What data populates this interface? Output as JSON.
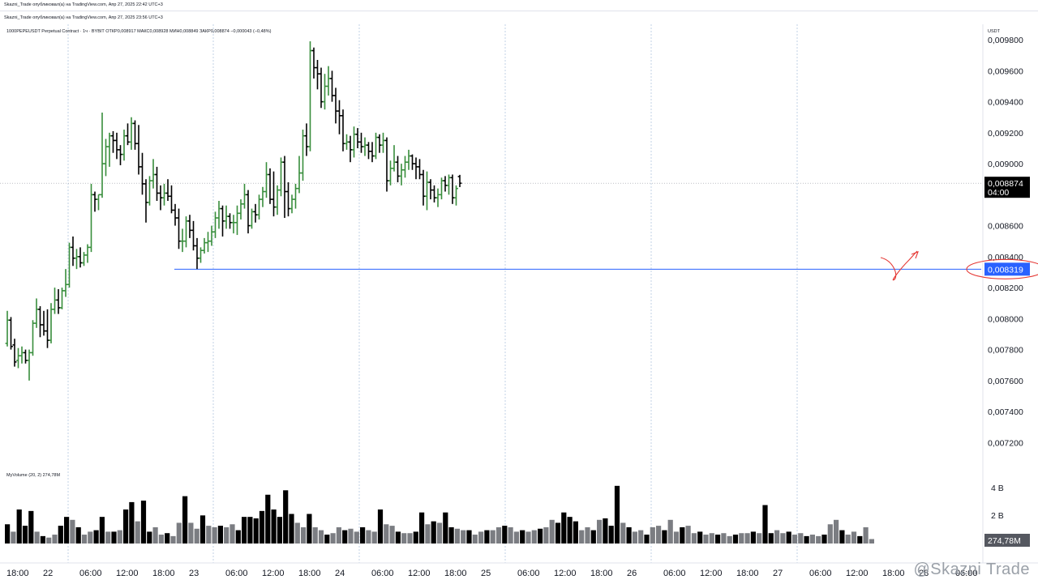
{
  "header": {
    "line1": "Skazni_Trade опубликовал(а) на TradingView.com, Апр 27, 2025 22:42 UTC+3",
    "line2": "Skazni_Trade опубликовал(а) на TradingView.com, Апр 27, 2025 23:56 UTC+3"
  },
  "legend": {
    "symbol_line": "1000PEPEUSDT Perpetual Contract · 1ч · BYBIT",
    "ohlc": "ОТКР0,008917  МАКС0,008928  МИН0,008849  ЗАКР0,008874  −0,000043 (−0,48%)"
  },
  "currency": "USDT",
  "watermark": "@Skazni Trade",
  "colors": {
    "up": "#388e3c",
    "down": "#000000",
    "hline": "#2962ff",
    "annotation": "#e53935",
    "vol_up": "#000000",
    "vol_down": "#7b7d82"
  },
  "chart_data": {
    "type": "ohlc",
    "title": "1000PEPEUSDT Perpetual Contract · 1ч · BYBIT",
    "price_axis": {
      "ticks": [
        "0,009800",
        "0,009600",
        "0,009400",
        "0,009200",
        "0,009000",
        "0,008600",
        "0,008400",
        "0,008200",
        "0,008000",
        "0,007800",
        "0,007600",
        "0,007400",
        "0,007200"
      ],
      "ylim": [
        0.00705,
        0.0099
      ]
    },
    "time_axis": {
      "ticks": [
        "18:00",
        "22",
        "06:00",
        "12:00",
        "18:00",
        "23",
        "06:00",
        "12:00",
        "18:00",
        "24",
        "06:00",
        "12:00",
        "18:00",
        "25",
        "06:00",
        "12:00",
        "18:00",
        "26",
        "06:00",
        "12:00",
        "18:00",
        "27",
        "06:00",
        "12:00",
        "18:00",
        "28",
        "06:00"
      ]
    },
    "last_price": {
      "value": "0,008874",
      "countdown": "04:00",
      "y": 0.008874
    },
    "horizontal_line": {
      "label": "0,008319",
      "y": 0.008319
    },
    "candles": [
      {
        "o": 0.00784,
        "h": 0.00805,
        "l": 0.00782,
        "c": 0.00799
      },
      {
        "o": 0.00799,
        "h": 0.00801,
        "l": 0.0078,
        "c": 0.00782
      },
      {
        "o": 0.00783,
        "h": 0.00787,
        "l": 0.00769,
        "c": 0.00772
      },
      {
        "o": 0.00773,
        "h": 0.00781,
        "l": 0.00768,
        "c": 0.00776
      },
      {
        "o": 0.00776,
        "h": 0.00782,
        "l": 0.00771,
        "c": 0.00778
      },
      {
        "o": 0.00778,
        "h": 0.0078,
        "l": 0.00771,
        "c": 0.00773
      },
      {
        "o": 0.00773,
        "h": 0.0078,
        "l": 0.0076,
        "c": 0.00778
      },
      {
        "o": 0.00778,
        "h": 0.00799,
        "l": 0.00776,
        "c": 0.00797
      },
      {
        "o": 0.00797,
        "h": 0.00813,
        "l": 0.00794,
        "c": 0.00806
      },
      {
        "o": 0.00806,
        "h": 0.00808,
        "l": 0.00788,
        "c": 0.00796
      },
      {
        "o": 0.00796,
        "h": 0.00805,
        "l": 0.00789,
        "c": 0.00792
      },
      {
        "o": 0.00792,
        "h": 0.00806,
        "l": 0.00781,
        "c": 0.00786
      },
      {
        "o": 0.00786,
        "h": 0.0081,
        "l": 0.00784,
        "c": 0.00806
      },
      {
        "o": 0.00806,
        "h": 0.0082,
        "l": 0.00803,
        "c": 0.00812
      },
      {
        "o": 0.00812,
        "h": 0.00819,
        "l": 0.00803,
        "c": 0.00807
      },
      {
        "o": 0.00807,
        "h": 0.0082,
        "l": 0.00806,
        "c": 0.00818
      },
      {
        "o": 0.00818,
        "h": 0.00832,
        "l": 0.00814,
        "c": 0.00822
      },
      {
        "o": 0.00822,
        "h": 0.00849,
        "l": 0.0082,
        "c": 0.00846
      },
      {
        "o": 0.00846,
        "h": 0.00853,
        "l": 0.00834,
        "c": 0.00839
      },
      {
        "o": 0.00839,
        "h": 0.00845,
        "l": 0.00832,
        "c": 0.0084
      },
      {
        "o": 0.0084,
        "h": 0.00846,
        "l": 0.00833,
        "c": 0.00836
      },
      {
        "o": 0.00836,
        "h": 0.00843,
        "l": 0.00834,
        "c": 0.00841
      },
      {
        "o": 0.00841,
        "h": 0.00848,
        "l": 0.00836,
        "c": 0.00846
      },
      {
        "o": 0.00846,
        "h": 0.00887,
        "l": 0.00843,
        "c": 0.0088
      },
      {
        "o": 0.0088,
        "h": 0.00882,
        "l": 0.00869,
        "c": 0.00877
      },
      {
        "o": 0.00877,
        "h": 0.0088,
        "l": 0.0087,
        "c": 0.0088
      },
      {
        "o": 0.0088,
        "h": 0.00933,
        "l": 0.00878,
        "c": 0.009
      },
      {
        "o": 0.009,
        "h": 0.00916,
        "l": 0.00892,
        "c": 0.00911
      },
      {
        "o": 0.00911,
        "h": 0.0092,
        "l": 0.00898,
        "c": 0.00918
      },
      {
        "o": 0.00918,
        "h": 0.00921,
        "l": 0.00907,
        "c": 0.00915
      },
      {
        "o": 0.00915,
        "h": 0.0092,
        "l": 0.00903,
        "c": 0.00909
      },
      {
        "o": 0.00909,
        "h": 0.00912,
        "l": 0.00899,
        "c": 0.00906
      },
      {
        "o": 0.00906,
        "h": 0.00922,
        "l": 0.00902,
        "c": 0.00918
      },
      {
        "o": 0.00918,
        "h": 0.00926,
        "l": 0.00912,
        "c": 0.00914
      },
      {
        "o": 0.00914,
        "h": 0.0093,
        "l": 0.00909,
        "c": 0.00926
      },
      {
        "o": 0.00926,
        "h": 0.00928,
        "l": 0.00909,
        "c": 0.00913
      },
      {
        "o": 0.00913,
        "h": 0.00925,
        "l": 0.00893,
        "c": 0.00898
      },
      {
        "o": 0.00898,
        "h": 0.00907,
        "l": 0.0088,
        "c": 0.00887
      },
      {
        "o": 0.00887,
        "h": 0.0089,
        "l": 0.00862,
        "c": 0.00875
      },
      {
        "o": 0.00875,
        "h": 0.00892,
        "l": 0.00873,
        "c": 0.00889
      },
      {
        "o": 0.00889,
        "h": 0.00903,
        "l": 0.00884,
        "c": 0.00893
      },
      {
        "o": 0.00893,
        "h": 0.00898,
        "l": 0.00876,
        "c": 0.00881
      },
      {
        "o": 0.00881,
        "h": 0.00886,
        "l": 0.0087,
        "c": 0.00878
      },
      {
        "o": 0.00878,
        "h": 0.00887,
        "l": 0.00873,
        "c": 0.00881
      },
      {
        "o": 0.00881,
        "h": 0.0089,
        "l": 0.00876,
        "c": 0.00879
      },
      {
        "o": 0.00879,
        "h": 0.00886,
        "l": 0.00868,
        "c": 0.0087
      },
      {
        "o": 0.0087,
        "h": 0.00874,
        "l": 0.0086,
        "c": 0.00865
      },
      {
        "o": 0.00865,
        "h": 0.00871,
        "l": 0.00845,
        "c": 0.0085
      },
      {
        "o": 0.0085,
        "h": 0.00858,
        "l": 0.00843,
        "c": 0.0085
      },
      {
        "o": 0.0085,
        "h": 0.00866,
        "l": 0.00846,
        "c": 0.00863
      },
      {
        "o": 0.00863,
        "h": 0.00867,
        "l": 0.00852,
        "c": 0.00857
      },
      {
        "o": 0.00857,
        "h": 0.00863,
        "l": 0.00844,
        "c": 0.00847
      },
      {
        "o": 0.00847,
        "h": 0.00852,
        "l": 0.00832,
        "c": 0.00839
      },
      {
        "o": 0.00839,
        "h": 0.00846,
        "l": 0.00836,
        "c": 0.00844
      },
      {
        "o": 0.00844,
        "h": 0.00852,
        "l": 0.00842,
        "c": 0.00849
      },
      {
        "o": 0.00849,
        "h": 0.00856,
        "l": 0.00843,
        "c": 0.0085
      },
      {
        "o": 0.0085,
        "h": 0.0086,
        "l": 0.00847,
        "c": 0.00856
      },
      {
        "o": 0.00856,
        "h": 0.00869,
        "l": 0.00852,
        "c": 0.00865
      },
      {
        "o": 0.00865,
        "h": 0.00876,
        "l": 0.00858,
        "c": 0.00871
      },
      {
        "o": 0.00871,
        "h": 0.00873,
        "l": 0.00853,
        "c": 0.00863
      },
      {
        "o": 0.00863,
        "h": 0.00873,
        "l": 0.00858,
        "c": 0.00866
      },
      {
        "o": 0.00866,
        "h": 0.00868,
        "l": 0.00858,
        "c": 0.00862
      },
      {
        "o": 0.00862,
        "h": 0.00867,
        "l": 0.00855,
        "c": 0.00862
      },
      {
        "o": 0.00862,
        "h": 0.00873,
        "l": 0.00854,
        "c": 0.00868
      },
      {
        "o": 0.00868,
        "h": 0.00877,
        "l": 0.00864,
        "c": 0.00874
      },
      {
        "o": 0.00874,
        "h": 0.00887,
        "l": 0.00871,
        "c": 0.0088
      },
      {
        "o": 0.0088,
        "h": 0.00883,
        "l": 0.00855,
        "c": 0.0086
      },
      {
        "o": 0.0086,
        "h": 0.00871,
        "l": 0.00858,
        "c": 0.00869
      },
      {
        "o": 0.00869,
        "h": 0.00874,
        "l": 0.00862,
        "c": 0.00867
      },
      {
        "o": 0.00867,
        "h": 0.0088,
        "l": 0.00864,
        "c": 0.00877
      },
      {
        "o": 0.00877,
        "h": 0.00885,
        "l": 0.00872,
        "c": 0.00882
      },
      {
        "o": 0.00882,
        "h": 0.00901,
        "l": 0.00878,
        "c": 0.00893
      },
      {
        "o": 0.00893,
        "h": 0.00897,
        "l": 0.00874,
        "c": 0.00877
      },
      {
        "o": 0.00877,
        "h": 0.00895,
        "l": 0.00866,
        "c": 0.00872
      },
      {
        "o": 0.00872,
        "h": 0.00886,
        "l": 0.00867,
        "c": 0.00883
      },
      {
        "o": 0.00883,
        "h": 0.00904,
        "l": 0.00879,
        "c": 0.00901
      },
      {
        "o": 0.00901,
        "h": 0.00905,
        "l": 0.00865,
        "c": 0.00882
      },
      {
        "o": 0.00882,
        "h": 0.00888,
        "l": 0.00866,
        "c": 0.00871
      },
      {
        "o": 0.00871,
        "h": 0.0088,
        "l": 0.00868,
        "c": 0.00877
      },
      {
        "o": 0.00877,
        "h": 0.00887,
        "l": 0.00871,
        "c": 0.00884
      },
      {
        "o": 0.00884,
        "h": 0.00905,
        "l": 0.00881,
        "c": 0.00894
      },
      {
        "o": 0.00894,
        "h": 0.00922,
        "l": 0.00889,
        "c": 0.00918
      },
      {
        "o": 0.00918,
        "h": 0.00926,
        "l": 0.00905,
        "c": 0.00911
      },
      {
        "o": 0.00911,
        "h": 0.00979,
        "l": 0.00908,
        "c": 0.00973
      },
      {
        "o": 0.00973,
        "h": 0.00975,
        "l": 0.00955,
        "c": 0.00962
      },
      {
        "o": 0.00962,
        "h": 0.00967,
        "l": 0.00948,
        "c": 0.00958
      },
      {
        "o": 0.00958,
        "h": 0.00962,
        "l": 0.00936,
        "c": 0.0094
      },
      {
        "o": 0.0094,
        "h": 0.00958,
        "l": 0.00935,
        "c": 0.0095
      },
      {
        "o": 0.0095,
        "h": 0.00963,
        "l": 0.00944,
        "c": 0.00955
      },
      {
        "o": 0.00955,
        "h": 0.0096,
        "l": 0.0094,
        "c": 0.00944
      },
      {
        "o": 0.00944,
        "h": 0.00949,
        "l": 0.00926,
        "c": 0.00934
      },
      {
        "o": 0.00934,
        "h": 0.00941,
        "l": 0.00919,
        "c": 0.00931
      },
      {
        "o": 0.00931,
        "h": 0.00935,
        "l": 0.00908,
        "c": 0.00913
      },
      {
        "o": 0.00913,
        "h": 0.00919,
        "l": 0.00909,
        "c": 0.00914
      },
      {
        "o": 0.00914,
        "h": 0.00918,
        "l": 0.00901,
        "c": 0.00909
      },
      {
        "o": 0.00909,
        "h": 0.00924,
        "l": 0.00904,
        "c": 0.00919
      },
      {
        "o": 0.00919,
        "h": 0.00923,
        "l": 0.0091,
        "c": 0.00914
      },
      {
        "o": 0.00914,
        "h": 0.0092,
        "l": 0.00907,
        "c": 0.00911
      },
      {
        "o": 0.00911,
        "h": 0.00917,
        "l": 0.00905,
        "c": 0.00912
      },
      {
        "o": 0.00912,
        "h": 0.00914,
        "l": 0.00903,
        "c": 0.00908
      },
      {
        "o": 0.00908,
        "h": 0.00914,
        "l": 0.00901,
        "c": 0.00905
      },
      {
        "o": 0.00905,
        "h": 0.0092,
        "l": 0.00903,
        "c": 0.00917
      },
      {
        "o": 0.00917,
        "h": 0.00919,
        "l": 0.00907,
        "c": 0.00912
      },
      {
        "o": 0.00912,
        "h": 0.0092,
        "l": 0.00907,
        "c": 0.00915
      },
      {
        "o": 0.00915,
        "h": 0.00917,
        "l": 0.00882,
        "c": 0.00889
      },
      {
        "o": 0.00889,
        "h": 0.00902,
        "l": 0.00886,
        "c": 0.00897
      },
      {
        "o": 0.00897,
        "h": 0.00912,
        "l": 0.00895,
        "c": 0.00901
      },
      {
        "o": 0.00901,
        "h": 0.00905,
        "l": 0.00888,
        "c": 0.00892
      },
      {
        "o": 0.00892,
        "h": 0.009,
        "l": 0.00886,
        "c": 0.00896
      },
      {
        "o": 0.00896,
        "h": 0.00905,
        "l": 0.00891,
        "c": 0.00901
      },
      {
        "o": 0.00901,
        "h": 0.00909,
        "l": 0.00896,
        "c": 0.00905
      },
      {
        "o": 0.00905,
        "h": 0.00906,
        "l": 0.00896,
        "c": 0.009
      },
      {
        "o": 0.009,
        "h": 0.00904,
        "l": 0.0089,
        "c": 0.00898
      },
      {
        "o": 0.00898,
        "h": 0.00903,
        "l": 0.0089,
        "c": 0.00893
      },
      {
        "o": 0.00893,
        "h": 0.00896,
        "l": 0.00873,
        "c": 0.00879
      },
      {
        "o": 0.00879,
        "h": 0.00895,
        "l": 0.0087,
        "c": 0.00888
      },
      {
        "o": 0.00888,
        "h": 0.0089,
        "l": 0.00877,
        "c": 0.00883
      },
      {
        "o": 0.00883,
        "h": 0.00886,
        "l": 0.00875,
        "c": 0.00878
      },
      {
        "o": 0.00878,
        "h": 0.00884,
        "l": 0.00872,
        "c": 0.0088
      },
      {
        "o": 0.0088,
        "h": 0.00891,
        "l": 0.00877,
        "c": 0.00889
      },
      {
        "o": 0.00889,
        "h": 0.00892,
        "l": 0.00882,
        "c": 0.00886
      },
      {
        "o": 0.00886,
        "h": 0.00893,
        "l": 0.0088,
        "c": 0.00891
      },
      {
        "o": 0.00891,
        "h": 0.00893,
        "l": 0.00874,
        "c": 0.00878
      },
      {
        "o": 0.00878,
        "h": 0.00886,
        "l": 0.00873,
        "c": 0.00884
      },
      {
        "o": 0.008917,
        "h": 0.008928,
        "l": 0.008849,
        "c": 0.008874
      }
    ],
    "volume": {
      "label": "MyVolume (20, 2)",
      "value": "274,78M",
      "ticks": [
        "4 B",
        "2 B"
      ],
      "values_B": [
        1.3,
        0.8,
        2.3,
        1.2,
        2.2,
        0.8,
        0.5,
        0.4,
        0.6,
        1.2,
        1.8,
        1.6,
        1.1,
        0.6,
        0.8,
        0.9,
        1.8,
        0.8,
        0.8,
        0.9,
        2.3,
        2.8,
        1.5,
        2.9,
        0.8,
        1.1,
        0.6,
        0.7,
        0.5,
        1.4,
        3.2,
        1.4,
        1.0,
        1.9,
        1.2,
        1.1,
        1.2,
        1.1,
        1.3,
        0.9,
        1.8,
        1.8,
        1.7,
        2.2,
        3.3,
        2.3,
        1.8,
        3.6,
        2.0,
        1.4,
        1.1,
        2.0,
        1.1,
        0.9,
        0.6,
        0.7,
        1.1,
        0.9,
        1.0,
        0.8,
        1.1,
        0.9,
        0.8,
        2.3,
        1.3,
        1.2,
        0.8,
        0.7,
        0.7,
        0.8,
        2.1,
        1.3,
        1.5,
        1.4,
        2.1,
        1.1,
        1.0,
        0.9,
        0.9,
        0.6,
        0.8,
        0.9,
        0.9,
        1.1,
        1.2,
        1.1,
        0.8,
        0.9,
        0.8,
        0.9,
        1.0,
        1.1,
        1.6,
        1.4,
        2.1,
        1.8,
        1.5,
        0.9,
        1.1,
        0.9,
        1.6,
        1.7,
        1.2,
        3.9,
        1.4,
        1.1,
        0.8,
        0.9,
        0.6,
        1.1,
        1.2,
        0.9,
        1.6,
        0.8,
        1.1,
        1.2,
        0.7,
        0.8,
        0.6,
        0.7,
        0.6,
        0.7,
        0.5,
        0.6,
        0.7,
        0.7,
        0.8,
        0.7,
        2.6,
        0.7,
        0.9,
        0.7,
        0.8,
        0.6,
        0.7,
        0.5,
        0.6,
        0.5,
        0.6,
        1.3,
        1.6,
        0.9,
        0.6,
        0.8,
        0.5,
        1.1,
        0.3
      ]
    }
  },
  "annotation": {
    "description": "red hand-drawn arrow curving up from horizontal line",
    "circle_around_label": true
  }
}
